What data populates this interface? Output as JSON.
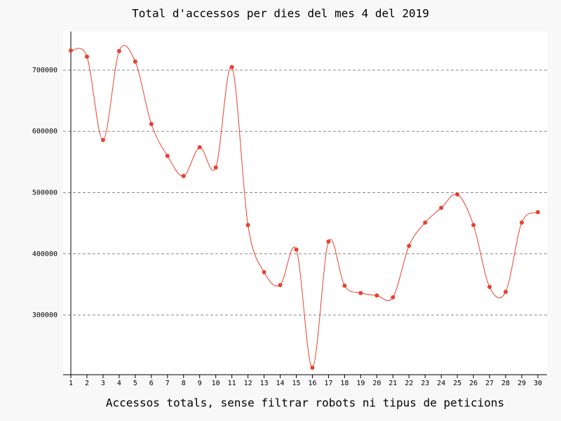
{
  "chart_data": {
    "type": "line",
    "title": "Total d'accessos per dies del mes 4 del 2019",
    "x_label": "Accessos totals, sense filtrar robots ni tipus de peticions",
    "categories": [
      "1",
      "2",
      "3",
      "4",
      "5",
      "6",
      "7",
      "8",
      "9",
      "10",
      "11",
      "12",
      "13",
      "14",
      "15",
      "16",
      "17",
      "18",
      "19",
      "20",
      "21",
      "22",
      "23",
      "24",
      "25",
      "26",
      "27",
      "28",
      "29",
      "30"
    ],
    "series": [
      {
        "name": "Accessos",
        "color": "#e8412f",
        "values": [
          732000,
          722000,
          586000,
          731000,
          714000,
          612000,
          560000,
          527000,
          574000,
          541000,
          705000,
          447000,
          370000,
          349000,
          407000,
          214000,
          420000,
          348000,
          336000,
          332000,
          329000,
          413000,
          451000,
          475000,
          497000,
          447000,
          346000,
          338000,
          451000,
          468000
        ]
      }
    ],
    "ylim": [
      202600,
      763000
    ],
    "yticks": [
      300000,
      400000,
      500000,
      600000,
      700000
    ],
    "grid": true
  }
}
